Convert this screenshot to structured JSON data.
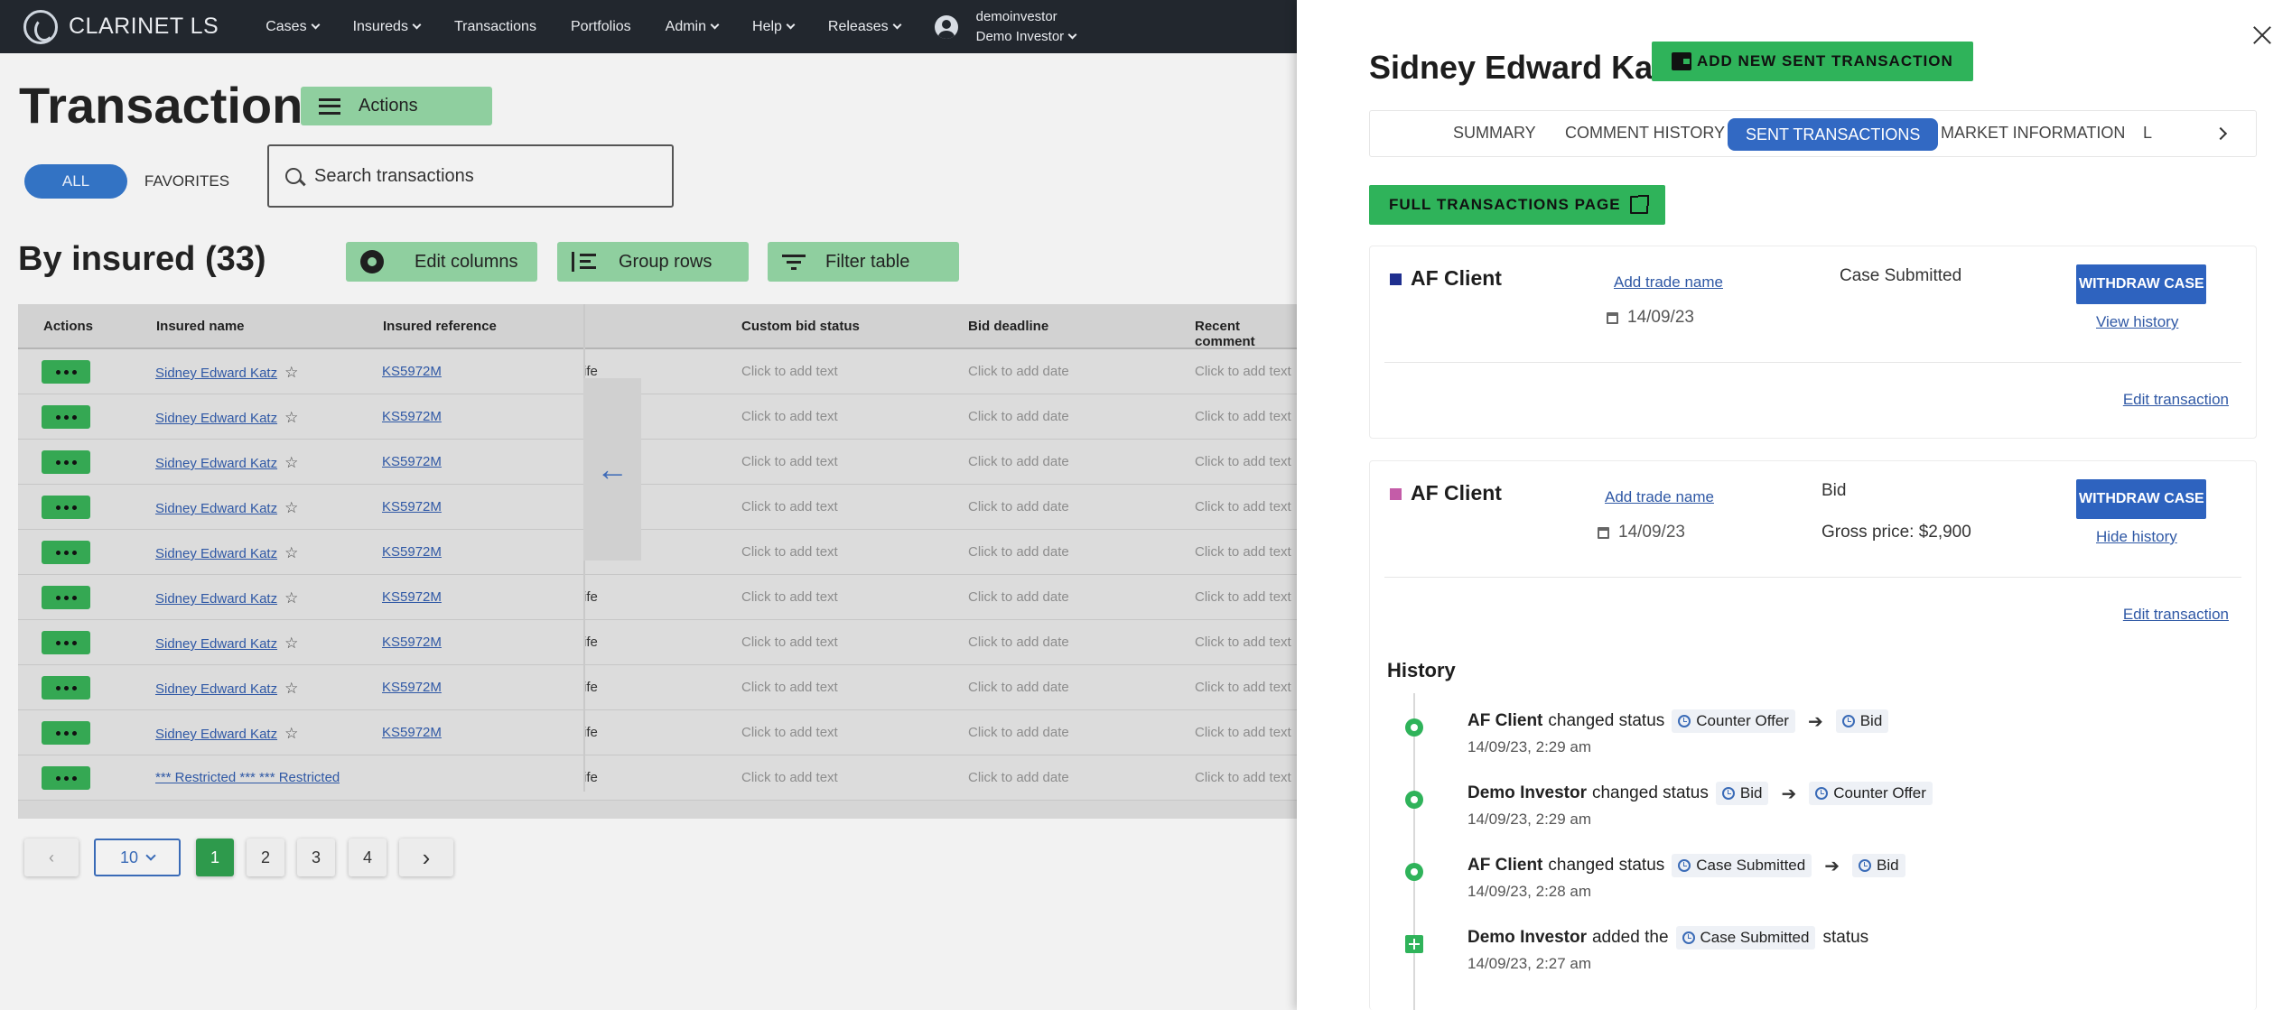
{
  "nav": {
    "brand": "CLARINET LS",
    "items": [
      "Cases",
      "Insureds",
      "Transactions",
      "Portfolios",
      "Admin",
      "Help",
      "Releases"
    ],
    "user_name": "demoinvestor",
    "user_role": "Demo Investor"
  },
  "page": {
    "title": "Transactions",
    "actions_label": "Actions",
    "filter_all": "ALL",
    "filter_favorites": "FAVORITES",
    "search_placeholder": "Search transactions",
    "section_title": "By insured (33)",
    "edit_columns": "Edit columns",
    "group_rows": "Group rows",
    "filter_table": "Filter table"
  },
  "table": {
    "headers": {
      "actions": "Actions",
      "insured_name": "Insured name",
      "insured_reference": "Insured reference",
      "custom_bid_status": "Custom bid status",
      "bid_deadline": "Bid deadline",
      "recent_comment": "Recent comment"
    },
    "rows": [
      {
        "name": "Sidney Edward Katz",
        "ref": "KS5972M",
        "frag": "ife",
        "status": "Click to add text",
        "deadline": "Click to add date",
        "comment": "Click to add text"
      },
      {
        "name": "Sidney Edward Katz",
        "ref": "KS5972M",
        "frag": "",
        "status": "Click to add text",
        "deadline": "Click to add date",
        "comment": "Click to add text"
      },
      {
        "name": "Sidney Edward Katz",
        "ref": "KS5972M",
        "frag": "",
        "status": "Click to add text",
        "deadline": "Click to add date",
        "comment": "Click to add text"
      },
      {
        "name": "Sidney Edward Katz",
        "ref": "KS5972M",
        "frag": "",
        "status": "Click to add text",
        "deadline": "Click to add date",
        "comment": "Click to add text"
      },
      {
        "name": "Sidney Edward Katz",
        "ref": "KS5972M",
        "frag": "",
        "status": "Click to add text",
        "deadline": "Click to add date",
        "comment": "Click to add text"
      },
      {
        "name": "Sidney Edward Katz",
        "ref": "KS5972M",
        "frag": "ife",
        "status": "Click to add text",
        "deadline": "Click to add date",
        "comment": "Click to add text"
      },
      {
        "name": "Sidney Edward Katz",
        "ref": "KS5972M",
        "frag": "ife",
        "status": "Click to add text",
        "deadline": "Click to add date",
        "comment": "Click to add text"
      },
      {
        "name": "Sidney Edward Katz",
        "ref": "KS5972M",
        "frag": "ife",
        "status": "Click to add text",
        "deadline": "Click to add date",
        "comment": "Click to add text"
      },
      {
        "name": "Sidney Edward Katz",
        "ref": "KS5972M",
        "frag": "ife",
        "status": "Click to add text",
        "deadline": "Click to add date",
        "comment": "Click to add text"
      },
      {
        "name": "*** Restricted *** *** Restricted",
        "ref": "",
        "frag": "ife",
        "status": "Click to add text",
        "deadline": "Click to add date",
        "comment": "Click to add text"
      }
    ]
  },
  "pagination": {
    "page_size": "10",
    "pages": [
      "1",
      "2",
      "3",
      "4"
    ],
    "current": "1"
  },
  "drawer": {
    "title": "Sidney Edward Katz",
    "add_sent_label": "ADD NEW SENT TRANSACTION",
    "tabs": [
      "SUMMARY",
      "COMMENT HISTORY",
      "SENT TRANSACTIONS",
      "MARKET INFORMATION",
      "L"
    ],
    "active_tab": "SENT TRANSACTIONS",
    "full_page_label": "FULL TRANSACTIONS PAGE",
    "transactions": [
      {
        "client": "AF Client",
        "color": "#1f2f8f",
        "trade_name": "Add trade name",
        "date": "14/09/23",
        "status": "Case Submitted",
        "gross": "",
        "withdraw": "WITHDRAW CASE",
        "history_link": "View history",
        "edit": "Edit transaction"
      },
      {
        "client": "AF Client",
        "color": "#c45ca8",
        "trade_name": "Add trade name",
        "date": "14/09/23",
        "status": "Bid",
        "gross": "Gross price: $2,900",
        "withdraw": "WITHDRAW CASE",
        "history_link": "Hide history",
        "edit": "Edit transaction"
      }
    ],
    "history_title": "History",
    "history": [
      {
        "icon": "gear-icon",
        "actor": "AF Client",
        "action": "changed status",
        "from": "Counter Offer",
        "to": "Bid",
        "time": "14/09/23, 2:29 am"
      },
      {
        "icon": "gear-icon",
        "actor": "Demo Investor",
        "action": "changed status",
        "from": "Bid",
        "to": "Counter Offer",
        "time": "14/09/23, 2:29 am"
      },
      {
        "icon": "gear-icon",
        "actor": "AF Client",
        "action": "changed status",
        "from": "Case Submitted",
        "to": "Bid",
        "time": "14/09/23, 2:28 am"
      },
      {
        "icon": "plus-icon",
        "actor": "Demo Investor",
        "action": "added the",
        "from": "Case Submitted",
        "to": "",
        "suffix": "status",
        "time": "14/09/23, 2:27 am"
      }
    ]
  }
}
